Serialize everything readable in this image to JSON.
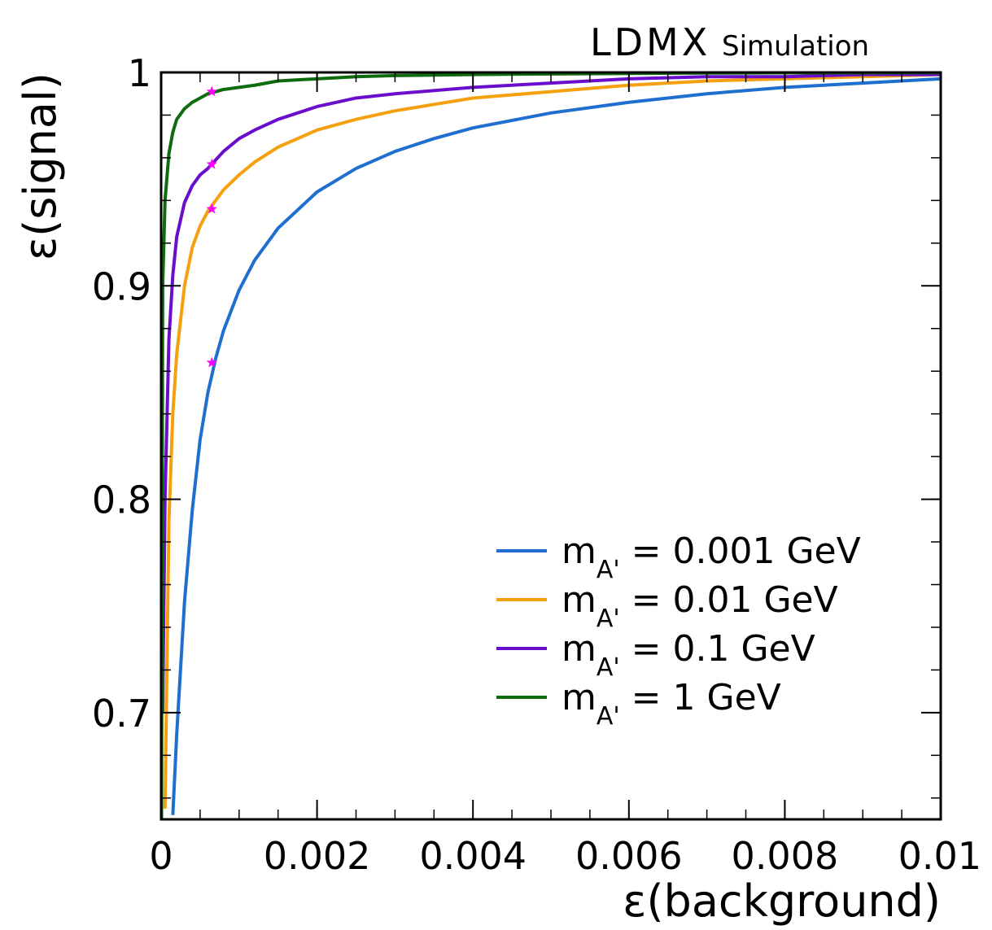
{
  "chart_data": {
    "type": "line",
    "title": "",
    "experiment_label": "LDMX",
    "experiment_sublabel": "Simulation",
    "xlabel": "ε(background)",
    "ylabel": "ε(signal)",
    "xlim": [
      0,
      0.01
    ],
    "ylim": [
      0.65,
      1.0
    ],
    "xticks": [
      {
        "value": 0,
        "label": "0"
      },
      {
        "value": 0.002,
        "label": "0.002"
      },
      {
        "value": 0.004,
        "label": "0.004"
      },
      {
        "value": 0.006,
        "label": "0.006"
      },
      {
        "value": 0.008,
        "label": "0.008"
      },
      {
        "value": 0.01,
        "label": "0.01"
      }
    ],
    "yticks": [
      {
        "value": 0.7,
        "label": "0.7"
      },
      {
        "value": 0.8,
        "label": "0.8"
      },
      {
        "value": 0.9,
        "label": "0.9"
      },
      {
        "value": 1.0,
        "label": "1"
      }
    ],
    "grid": false,
    "legend_position": "bottom-right",
    "series": [
      {
        "name": "m_A' = 0.001 GeV",
        "legend": {
          "base": "m",
          "sub": "A'",
          "rest": " = 0.001 GeV"
        },
        "color": "#1f6fd0",
        "x": [
          0.00015,
          0.0002,
          0.0003,
          0.0004,
          0.0005,
          0.0006,
          0.0007,
          0.0008,
          0.001,
          0.0012,
          0.0015,
          0.002,
          0.0025,
          0.003,
          0.0035,
          0.004,
          0.005,
          0.006,
          0.007,
          0.008,
          0.009,
          0.01
        ],
        "y": [
          0.652,
          0.69,
          0.752,
          0.795,
          0.828,
          0.85,
          0.866,
          0.879,
          0.898,
          0.912,
          0.927,
          0.944,
          0.955,
          0.963,
          0.969,
          0.974,
          0.981,
          0.986,
          0.99,
          0.993,
          0.995,
          0.997
        ],
        "marker": {
          "x": 0.00065,
          "y": 0.864
        }
      },
      {
        "name": "m_A' = 0.01 GeV",
        "legend": {
          "base": "m",
          "sub": "A'",
          "rest": " = 0.01 GeV"
        },
        "color": "#f5a00f",
        "x": [
          5e-05,
          0.0001,
          0.00015,
          0.0002,
          0.0003,
          0.0004,
          0.0005,
          0.0006,
          0.0007,
          0.0008,
          0.001,
          0.0012,
          0.0015,
          0.002,
          0.0025,
          0.003,
          0.004,
          0.005,
          0.006,
          0.007,
          0.008,
          0.009,
          0.01
        ],
        "y": [
          0.655,
          0.79,
          0.84,
          0.868,
          0.9,
          0.918,
          0.928,
          0.935,
          0.94,
          0.945,
          0.952,
          0.958,
          0.965,
          0.973,
          0.978,
          0.982,
          0.988,
          0.991,
          0.994,
          0.996,
          0.997,
          0.998,
          0.999
        ],
        "marker": {
          "x": 0.00065,
          "y": 0.936
        }
      },
      {
        "name": "m_A' = 0.1 GeV",
        "legend": {
          "base": "m",
          "sub": "A'",
          "rest": " = 0.1 GeV"
        },
        "color": "#6a0dcc",
        "x": [
          2e-05,
          5e-05,
          0.0001,
          0.00015,
          0.0002,
          0.0003,
          0.0004,
          0.0005,
          0.0006,
          0.0007,
          0.0008,
          0.001,
          0.0012,
          0.0015,
          0.002,
          0.0025,
          0.003,
          0.004,
          0.005,
          0.006,
          0.007,
          0.008,
          0.009,
          0.01
        ],
        "y": [
          0.7,
          0.8,
          0.875,
          0.905,
          0.923,
          0.939,
          0.947,
          0.952,
          0.955,
          0.959,
          0.963,
          0.969,
          0.973,
          0.978,
          0.984,
          0.988,
          0.99,
          0.993,
          0.995,
          0.997,
          0.998,
          0.998,
          0.999,
          0.999
        ],
        "marker": {
          "x": 0.00065,
          "y": 0.957
        }
      },
      {
        "name": "m_A' = 1 GeV",
        "legend": {
          "base": "m",
          "sub": "A'",
          "rest": " = 1 GeV"
        },
        "color": "#0e6b0e",
        "x": [
          5e-06,
          2e-05,
          5e-05,
          0.0001,
          0.00015,
          0.0002,
          0.0003,
          0.0004,
          0.0005,
          0.0006,
          0.0007,
          0.0008,
          0.001,
          0.0012,
          0.0015,
          0.002,
          0.0025,
          0.003,
          0.004,
          0.005,
          0.006,
          0.007,
          0.008,
          0.01
        ],
        "y": [
          0.65,
          0.9,
          0.94,
          0.962,
          0.972,
          0.978,
          0.983,
          0.986,
          0.988,
          0.99,
          0.991,
          0.992,
          0.993,
          0.994,
          0.996,
          0.997,
          0.998,
          0.9985,
          0.999,
          0.9993,
          0.9995,
          0.9997,
          0.9998,
          0.9999
        ],
        "marker": {
          "x": 0.00065,
          "y": 0.991
        }
      }
    ],
    "marker_color": "#ff00ff"
  }
}
